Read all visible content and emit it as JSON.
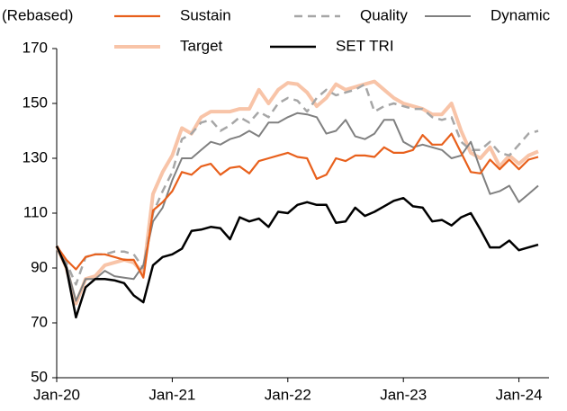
{
  "chart_data": {
    "type": "line",
    "y_label": "(Rebased)",
    "categories": [
      "Jan-20",
      null,
      null,
      null,
      null,
      null,
      null,
      null,
      null,
      null,
      null,
      null,
      "Jan-21",
      null,
      null,
      null,
      null,
      null,
      null,
      null,
      null,
      null,
      null,
      null,
      "Jan-22",
      null,
      null,
      null,
      null,
      null,
      null,
      null,
      null,
      null,
      null,
      null,
      "Jan-23",
      null,
      null,
      null,
      null,
      null,
      null,
      null,
      null,
      null,
      null,
      null,
      "Jan-24",
      null,
      null
    ],
    "ylim": [
      50,
      170
    ],
    "yticks": [
      50,
      70,
      90,
      110,
      130,
      150,
      170
    ],
    "grid": false,
    "series": [
      {
        "name": "Sustain",
        "color": "#e8601c",
        "line_style": "solid",
        "line_width": 2.2,
        "values": [
          98,
          93,
          89.5,
          94,
          95,
          95,
          94,
          93,
          93,
          86.5,
          111,
          114,
          118,
          125,
          124,
          127,
          128,
          124,
          126.5,
          127,
          124.5,
          129,
          130,
          131,
          132,
          130.5,
          130,
          122.5,
          124,
          130,
          129,
          131,
          131,
          130.5,
          134,
          132,
          132,
          133,
          138.5,
          135,
          135,
          139,
          132,
          125,
          124.5,
          129.5,
          126,
          129.5,
          126,
          129.5,
          130.5
        ]
      },
      {
        "name": "Quality",
        "color": "#a6a6a6",
        "line_style": "dashed",
        "line_width": 2.5,
        "values": [
          98,
          92,
          84,
          94,
          95,
          95,
          96,
          96,
          95,
          90,
          110,
          118,
          125,
          137,
          139,
          143,
          144,
          140,
          142,
          145,
          143,
          147,
          145,
          150,
          152,
          151,
          147,
          152,
          155,
          153,
          154,
          155,
          157,
          147,
          149,
          150,
          149,
          148,
          148,
          145,
          144,
          145,
          136,
          133,
          133,
          136,
          132,
          131,
          135,
          139,
          140
        ]
      },
      {
        "name": "Dynamic",
        "color": "#808080",
        "line_style": "solid",
        "line_width": 2,
        "values": [
          98,
          91,
          78,
          86,
          86,
          89,
          87,
          86.5,
          86,
          91,
          107,
          112,
          122,
          130,
          130,
          133,
          136,
          135,
          137,
          138,
          140,
          138,
          143,
          143,
          145,
          146.5,
          146,
          145,
          139,
          140,
          144,
          138,
          137,
          139,
          144,
          144,
          136,
          134,
          135,
          134,
          133,
          130,
          131,
          136,
          126,
          117,
          118,
          120,
          114,
          117,
          120
        ]
      },
      {
        "name": "Target",
        "color": "#f8c4a8",
        "line_style": "solid",
        "line_width": 4,
        "values": [
          98,
          90,
          77,
          86,
          87,
          91,
          92,
          93,
          92,
          88,
          117,
          125,
          131,
          141,
          139,
          145,
          147,
          147,
          147,
          148,
          148,
          155,
          150,
          155,
          157.5,
          157,
          154,
          149,
          152,
          157,
          155,
          156,
          157,
          158,
          155,
          152,
          150,
          149,
          148,
          146,
          146,
          150,
          140,
          132,
          130,
          134,
          127,
          131,
          128,
          131,
          132.5
        ]
      },
      {
        "name": "SET TRI",
        "color": "#000000",
        "line_style": "solid",
        "line_width": 2.5,
        "values": [
          98,
          90,
          72,
          83,
          86,
          86,
          85.5,
          84.5,
          80,
          77.5,
          91,
          94,
          95,
          97,
          103.5,
          104,
          105,
          104.5,
          100.5,
          108.5,
          107,
          108,
          105,
          110.5,
          110,
          113,
          114,
          113,
          113,
          106.5,
          107,
          112,
          109,
          110.5,
          112.5,
          114.5,
          115.5,
          112.5,
          112,
          107,
          107.5,
          105.5,
          108.5,
          110,
          104,
          97.5,
          97.5,
          100,
          96.5,
          97.5,
          98.5
        ]
      }
    ]
  }
}
